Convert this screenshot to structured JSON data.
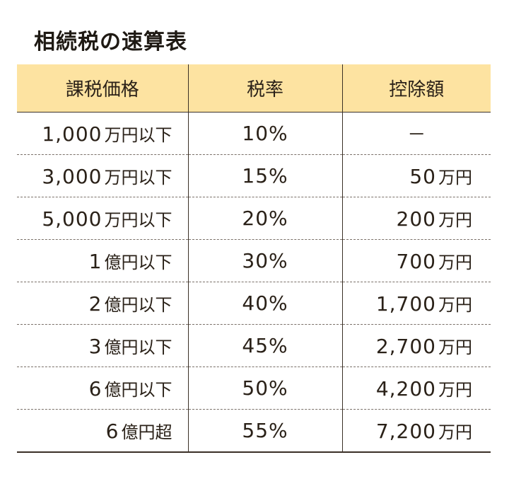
{
  "title": "相続税の速算表",
  "headers": {
    "price": "課税価格",
    "rate": "税率",
    "deduction": "控除額"
  },
  "rows": [
    {
      "price_num": "1,000",
      "price_unit": "万円以下",
      "rate": "10%",
      "deduction_num": "",
      "deduction_unit": "",
      "deduction_dash": "－"
    },
    {
      "price_num": "3,000",
      "price_unit": "万円以下",
      "rate": "15%",
      "deduction_num": "50",
      "deduction_unit": "万円",
      "deduction_dash": ""
    },
    {
      "price_num": "5,000",
      "price_unit": "万円以下",
      "rate": "20%",
      "deduction_num": "200",
      "deduction_unit": "万円",
      "deduction_dash": ""
    },
    {
      "price_num": "1",
      "price_unit": "億円以下",
      "rate": "30%",
      "deduction_num": "700",
      "deduction_unit": "万円",
      "deduction_dash": ""
    },
    {
      "price_num": "2",
      "price_unit": "億円以下",
      "rate": "40%",
      "deduction_num": "1,700",
      "deduction_unit": "万円",
      "deduction_dash": ""
    },
    {
      "price_num": "3",
      "price_unit": "億円以下",
      "rate": "45%",
      "deduction_num": "2,700",
      "deduction_unit": "万円",
      "deduction_dash": ""
    },
    {
      "price_num": "6",
      "price_unit": "億円以下",
      "rate": "50%",
      "deduction_num": "4,200",
      "deduction_unit": "万円",
      "deduction_dash": ""
    },
    {
      "price_num": "6",
      "price_unit": "億円超",
      "rate": "55%",
      "deduction_num": "7,200",
      "deduction_unit": "万円",
      "deduction_dash": ""
    }
  ],
  "colors": {
    "header_bg": "#fde3a1",
    "text": "#2a2118"
  }
}
